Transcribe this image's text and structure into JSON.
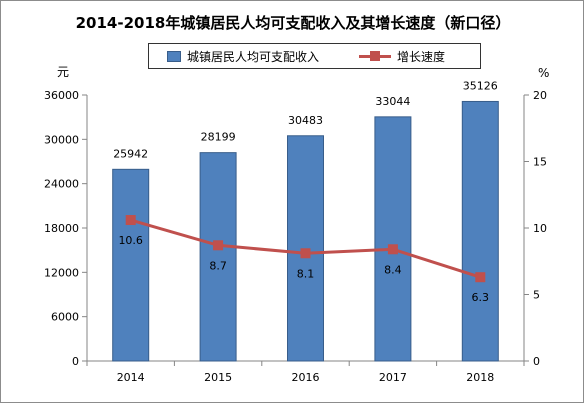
{
  "chart_data": {
    "type": "bar",
    "title": "2014-2018年城镇居民人均可支配收入及其增长速度（新口径）",
    "categories": [
      "2014",
      "2015",
      "2016",
      "2017",
      "2018"
    ],
    "series": [
      {
        "name": "城镇居民人均可支配收入",
        "type": "bar",
        "axis": "left",
        "values": [
          25942,
          28199,
          30483,
          33044,
          35126
        ],
        "color": "#4f81bd"
      },
      {
        "name": "增长速度",
        "type": "line",
        "axis": "right",
        "values": [
          10.6,
          8.7,
          8.1,
          8.4,
          6.3
        ],
        "color": "#c0504d"
      }
    ],
    "y_left": {
      "unit": "元",
      "ylim": [
        0,
        36000
      ],
      "ticks": [
        0,
        6000,
        12000,
        18000,
        24000,
        30000,
        36000
      ],
      "tick_labels": [
        "0",
        "6000",
        "12000",
        "18000",
        "24000",
        "30000",
        "36000"
      ]
    },
    "y_right": {
      "unit": "%",
      "ylim": [
        0,
        20
      ],
      "ticks": [
        0,
        5,
        10,
        15,
        20
      ],
      "tick_labels": [
        "0",
        "5",
        "10",
        "15",
        "20"
      ]
    },
    "bar_labels": [
      "25942",
      "28199",
      "30483",
      "33044",
      "35126"
    ],
    "line_labels": [
      "10.6",
      "8.7",
      "8.1",
      "8.4",
      "6.3"
    ],
    "legend_position": "top-center",
    "grid": false
  }
}
